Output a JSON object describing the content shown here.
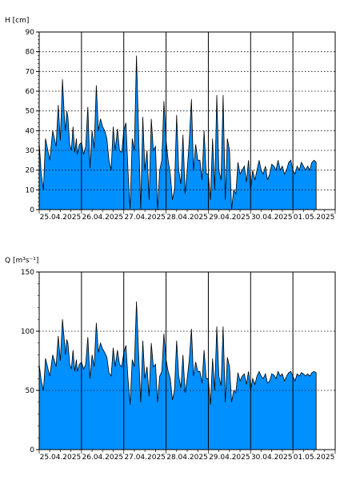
{
  "chart_data": [
    {
      "type": "area",
      "ylabel": "H [cm]",
      "ylim": [
        0,
        90
      ],
      "yticks": [
        0,
        10,
        20,
        30,
        40,
        50,
        60,
        70,
        80,
        90
      ],
      "grid": true,
      "x_tick_labels": [
        "25.04.2025",
        "26.04.2025",
        "27.04.2025",
        "28.04.2025",
        "29.04.2025",
        "30.04.2025",
        "01.05.2025"
      ],
      "fill_color": "#0090FF",
      "x": [
        0.0,
        0.05,
        0.1,
        0.15,
        0.25,
        0.32,
        0.4,
        0.45,
        0.5,
        0.55,
        0.6,
        0.62,
        0.65,
        0.68,
        0.72,
        0.76,
        0.8,
        0.84,
        0.88,
        0.9,
        0.95,
        1.0,
        1.05,
        1.1,
        1.15,
        1.2,
        1.25,
        1.3,
        1.35,
        1.4,
        1.45,
        1.5,
        1.55,
        1.6,
        1.65,
        1.7,
        1.75,
        1.8,
        1.85,
        1.9,
        1.95,
        2.0,
        2.05,
        2.1,
        2.15,
        2.2,
        2.25,
        2.3,
        2.35,
        2.4,
        2.45,
        2.5,
        2.55,
        2.6,
        2.65,
        2.7,
        2.75,
        2.8,
        2.85,
        2.9,
        2.95,
        3.0,
        3.05,
        3.1,
        3.15,
        3.2,
        3.25,
        3.3,
        3.35,
        3.4,
        3.45,
        3.5,
        3.55,
        3.6,
        3.65,
        3.7,
        3.75,
        3.8,
        3.85,
        3.9,
        3.95,
        4.0,
        4.05,
        4.1,
        4.15,
        4.2,
        4.25,
        4.3,
        4.35,
        4.4,
        4.45,
        4.5,
        4.55,
        4.6,
        4.65,
        4.7,
        4.75,
        4.8,
        4.85,
        4.9,
        4.95,
        5.0,
        5.05,
        5.1,
        5.15,
        5.2,
        5.25,
        5.3,
        5.35,
        5.4,
        5.45,
        5.5,
        5.55,
        5.6,
        5.65,
        5.7,
        5.75,
        5.8,
        5.85,
        5.9,
        5.95,
        6.0,
        6.05,
        6.1,
        6.15,
        6.2,
        6.25,
        6.3,
        6.35,
        6.4,
        6.45,
        6.5,
        6.55
      ],
      "values": [
        34,
        18,
        10,
        36,
        25,
        40,
        32,
        53,
        35,
        66,
        45,
        40,
        50,
        47,
        33,
        30,
        42,
        29,
        36,
        28,
        33,
        34,
        28,
        32,
        52,
        21,
        40,
        31,
        63,
        40,
        46,
        42,
        40,
        36,
        25,
        20,
        42,
        30,
        41,
        30,
        29,
        40,
        44,
        20,
        0,
        36,
        30,
        78,
        40,
        0,
        47,
        20,
        30,
        5,
        46,
        30,
        32,
        0,
        20,
        25,
        55,
        35,
        25,
        18,
        5,
        10,
        48,
        20,
        13,
        38,
        8,
        20,
        35,
        56,
        20,
        33,
        25,
        25,
        15,
        40,
        18,
        18,
        5,
        36,
        10,
        58,
        20,
        15,
        58,
        5,
        36,
        30,
        0,
        10,
        8,
        24,
        18,
        20,
        22,
        14,
        25,
        10,
        20,
        15,
        20,
        25,
        20,
        18,
        22,
        15,
        18,
        23,
        22,
        20,
        25,
        20,
        22,
        18,
        20,
        24,
        25,
        20,
        18,
        22,
        20,
        24,
        22,
        20,
        22,
        20,
        24,
        25,
        24
      ]
    },
    {
      "type": "area",
      "ylabel": "Q [m³s⁻¹]",
      "ylim": [
        0,
        150
      ],
      "yticks": [
        0,
        50,
        100,
        150
      ],
      "grid": true,
      "x_tick_labels": [
        "25.04.2025",
        "26.04.2025",
        "27.04.2025",
        "28.04.2025",
        "29.04.2025",
        "30.04.2025",
        "01.05.2025"
      ],
      "fill_color": "#0090FF",
      "x": [
        0.0,
        0.05,
        0.1,
        0.15,
        0.25,
        0.32,
        0.4,
        0.45,
        0.5,
        0.55,
        0.6,
        0.62,
        0.65,
        0.68,
        0.72,
        0.76,
        0.8,
        0.84,
        0.88,
        0.9,
        0.95,
        1.0,
        1.05,
        1.1,
        1.15,
        1.2,
        1.25,
        1.3,
        1.35,
        1.4,
        1.45,
        1.5,
        1.55,
        1.6,
        1.65,
        1.7,
        1.75,
        1.8,
        1.85,
        1.9,
        1.95,
        2.0,
        2.05,
        2.1,
        2.15,
        2.2,
        2.25,
        2.3,
        2.35,
        2.4,
        2.45,
        2.5,
        2.55,
        2.6,
        2.65,
        2.7,
        2.75,
        2.8,
        2.85,
        2.9,
        2.95,
        3.0,
        3.05,
        3.1,
        3.15,
        3.2,
        3.25,
        3.3,
        3.35,
        3.4,
        3.45,
        3.5,
        3.55,
        3.6,
        3.65,
        3.7,
        3.75,
        3.8,
        3.85,
        3.9,
        3.95,
        4.0,
        4.05,
        4.1,
        4.15,
        4.2,
        4.25,
        4.3,
        4.35,
        4.4,
        4.45,
        4.5,
        4.55,
        4.6,
        4.65,
        4.7,
        4.75,
        4.8,
        4.85,
        4.9,
        4.95,
        5.0,
        5.05,
        5.1,
        5.15,
        5.2,
        5.25,
        5.3,
        5.35,
        5.4,
        5.45,
        5.5,
        5.55,
        5.6,
        5.65,
        5.7,
        5.75,
        5.8,
        5.85,
        5.9,
        5.95,
        6.0,
        6.05,
        6.1,
        6.15,
        6.2,
        6.25,
        6.3,
        6.35,
        6.4,
        6.45,
        6.5,
        6.55
      ],
      "values": [
        72,
        58,
        50,
        77,
        62,
        80,
        70,
        96,
        75,
        110,
        90,
        80,
        93,
        90,
        72,
        68,
        84,
        66,
        76,
        66,
        72,
        74,
        68,
        72,
        95,
        60,
        80,
        70,
        107,
        82,
        90,
        85,
        82,
        78,
        65,
        62,
        86,
        70,
        84,
        72,
        70,
        82,
        88,
        60,
        38,
        76,
        70,
        125,
        82,
        40,
        92,
        60,
        70,
        45,
        90,
        70,
        72,
        40,
        62,
        66,
        98,
        76,
        66,
        60,
        42,
        50,
        92,
        62,
        52,
        80,
        48,
        60,
        76,
        102,
        62,
        74,
        66,
        66,
        56,
        84,
        60,
        60,
        38,
        77,
        50,
        104,
        62,
        54,
        104,
        40,
        78,
        70,
        40,
        50,
        48,
        65,
        58,
        62,
        64,
        55,
        66,
        50,
        60,
        55,
        62,
        66,
        62,
        60,
        64,
        56,
        58,
        64,
        63,
        60,
        66,
        62,
        64,
        58,
        62,
        65,
        66,
        62,
        58,
        64,
        62,
        65,
        64,
        62,
        64,
        62,
        65,
        66,
        65
      ]
    }
  ]
}
